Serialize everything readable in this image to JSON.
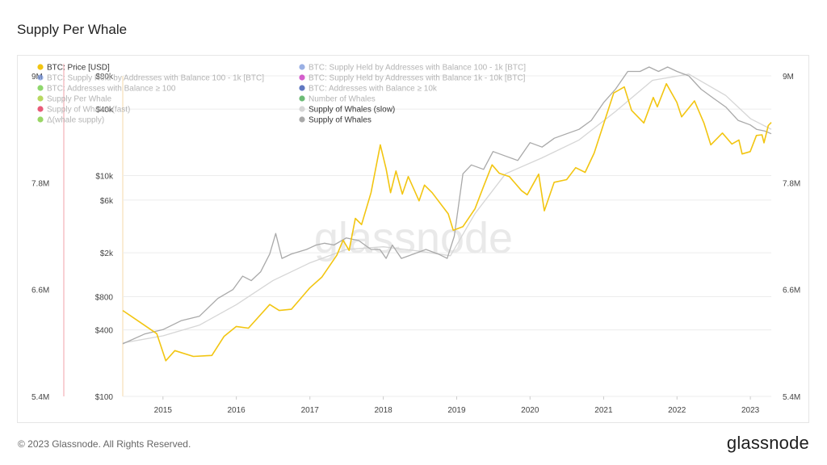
{
  "page": {
    "title": "Supply Per Whale",
    "footer": "© 2023 Glassnode. All Rights Reserved.",
    "brand": "glassnode",
    "watermark": "glassnode"
  },
  "chart_data": {
    "type": "line",
    "title": "Supply Per Whale",
    "legend_placement": "top-left",
    "grid": true,
    "x_ticks": [
      "2015",
      "2016",
      "2017",
      "2018",
      "2019",
      "2020",
      "2021",
      "2022",
      "2023"
    ],
    "x_range": [
      "2014-06-15",
      "2023-04-15"
    ],
    "y_left": {
      "scale": "log",
      "ticks": [
        "$100",
        "$400",
        "$800",
        "$2k",
        "$6k",
        "$10k",
        "$40k",
        "$80k"
      ],
      "tick_values": [
        100,
        400,
        800,
        2000,
        6000,
        10000,
        40000,
        80000
      ],
      "range": [
        100,
        80000
      ]
    },
    "y_right": {
      "ticks": [
        "5.4M",
        "6.6M",
        "7.8M",
        "9M"
      ],
      "tick_values": [
        5400000,
        6600000,
        7800000,
        9000000
      ],
      "range": [
        5400000,
        9000000
      ]
    },
    "outer_left_ticks": [
      "9M",
      "7.8M",
      "6.6M",
      "5.4M"
    ],
    "legend": [
      {
        "label": "BTC: Price [USD]",
        "color": "#f2c511",
        "active": true
      },
      {
        "label": "BTC: Supply Held by Addresses with Balance 100 - 1k [BTC]",
        "color": "#6f8fd8",
        "active": false
      },
      {
        "label": "BTC: Supply Held by Addresses with Balance 100 - 1k [BTC]",
        "color": "#6f8fd8",
        "active": false
      },
      {
        "label": "BTC: Supply Held by Addresses with Balance 1k - 10k [BTC]",
        "color": "#c31bb8",
        "active": false
      },
      {
        "label": "BTC: Addresses with Balance ≥ 100",
        "color": "#5fc62f",
        "active": false
      },
      {
        "label": "BTC: Addresses with Balance ≥ 10k",
        "color": "#1c3fa6",
        "active": false
      },
      {
        "label": "Supply Per Whale",
        "color": "#9ac81c",
        "active": false
      },
      {
        "label": "Number of Whales",
        "color": "#2e9e3c",
        "active": false
      },
      {
        "label": "Supply of Whales (fast)",
        "color": "#e0163f",
        "active": false
      },
      {
        "label": "Supply of Whales (slow)",
        "color": "#d6d6d6",
        "active": true
      },
      {
        "label": "Δ(whale supply)",
        "color": "#6fc425",
        "active": false
      },
      {
        "label": "Supply of Whales",
        "color": "#a9a9a9",
        "active": true
      }
    ],
    "series": [
      {
        "name": "BTC: Price [USD]",
        "color": "#f2c511",
        "axis": "left",
        "points": [
          [
            "2014-06-15",
            600
          ],
          [
            "2014-09-01",
            480
          ],
          [
            "2014-12-01",
            370
          ],
          [
            "2015-01-15",
            210
          ],
          [
            "2015-03-01",
            260
          ],
          [
            "2015-06-01",
            230
          ],
          [
            "2015-09-01",
            235
          ],
          [
            "2015-11-01",
            350
          ],
          [
            "2016-01-01",
            430
          ],
          [
            "2016-03-01",
            415
          ],
          [
            "2016-06-15",
            680
          ],
          [
            "2016-08-01",
            600
          ],
          [
            "2016-10-01",
            615
          ],
          [
            "2016-12-31",
            960
          ],
          [
            "2017-03-01",
            1200
          ],
          [
            "2017-05-15",
            1900
          ],
          [
            "2017-06-15",
            2600
          ],
          [
            "2017-07-15",
            2100
          ],
          [
            "2017-08-15",
            4100
          ],
          [
            "2017-09-15",
            3600
          ],
          [
            "2017-11-01",
            7000
          ],
          [
            "2017-12-17",
            19000
          ],
          [
            "2018-01-15",
            11500
          ],
          [
            "2018-02-06",
            7000
          ],
          [
            "2018-03-05",
            11000
          ],
          [
            "2018-04-06",
            6800
          ],
          [
            "2018-05-05",
            9800
          ],
          [
            "2018-06-28",
            5900
          ],
          [
            "2018-07-25",
            8200
          ],
          [
            "2018-09-01",
            7000
          ],
          [
            "2018-11-20",
            4500
          ],
          [
            "2018-12-15",
            3200
          ],
          [
            "2019-02-01",
            3450
          ],
          [
            "2019-04-02",
            5000
          ],
          [
            "2019-05-15",
            8000
          ],
          [
            "2019-06-26",
            12500
          ],
          [
            "2019-08-01",
            10500
          ],
          [
            "2019-09-20",
            9800
          ],
          [
            "2019-11-20",
            7300
          ],
          [
            "2019-12-18",
            6700
          ],
          [
            "2020-02-13",
            10300
          ],
          [
            "2020-03-12",
            4800
          ],
          [
            "2020-04-30",
            8700
          ],
          [
            "2020-07-01",
            9200
          ],
          [
            "2020-08-15",
            11800
          ],
          [
            "2020-10-01",
            10700
          ],
          [
            "2020-11-15",
            16000
          ],
          [
            "2020-12-31",
            29000
          ],
          [
            "2021-02-20",
            56000
          ],
          [
            "2021-04-14",
            63500
          ],
          [
            "2021-05-20",
            39000
          ],
          [
            "2021-07-20",
            30000
          ],
          [
            "2021-09-05",
            51000
          ],
          [
            "2021-09-25",
            42000
          ],
          [
            "2021-11-09",
            68000
          ],
          [
            "2021-12-31",
            46200
          ],
          [
            "2022-01-24",
            34000
          ],
          [
            "2022-03-29",
            47500
          ],
          [
            "2022-05-15",
            30000
          ],
          [
            "2022-06-18",
            19000
          ],
          [
            "2022-08-15",
            24300
          ],
          [
            "2022-10-01",
            19300
          ],
          [
            "2022-11-05",
            21000
          ],
          [
            "2022-11-21",
            15700
          ],
          [
            "2022-12-31",
            16500
          ],
          [
            "2023-01-31",
            23100
          ],
          [
            "2023-02-28",
            23400
          ],
          [
            "2023-03-10",
            19800
          ],
          [
            "2023-03-31",
            28400
          ],
          [
            "2023-04-15",
            30300
          ]
        ]
      },
      {
        "name": "Supply of Whales",
        "color": "#a9a9a9",
        "axis": "right",
        "points": [
          [
            "2014-06-15",
            5990000
          ],
          [
            "2014-10-01",
            6100000
          ],
          [
            "2015-01-01",
            6150000
          ],
          [
            "2015-04-01",
            6250000
          ],
          [
            "2015-07-01",
            6300000
          ],
          [
            "2015-10-01",
            6500000
          ],
          [
            "2015-12-15",
            6600000
          ],
          [
            "2016-02-01",
            6750000
          ],
          [
            "2016-03-15",
            6700000
          ],
          [
            "2016-05-01",
            6800000
          ],
          [
            "2016-06-15",
            7000000
          ],
          [
            "2016-07-15",
            7230000
          ],
          [
            "2016-08-15",
            6950000
          ],
          [
            "2016-10-01",
            7000000
          ],
          [
            "2016-12-15",
            7050000
          ],
          [
            "2017-02-01",
            7100000
          ],
          [
            "2017-03-15",
            7120000
          ],
          [
            "2017-05-01",
            7100000
          ],
          [
            "2017-07-01",
            7180000
          ],
          [
            "2017-09-01",
            7150000
          ],
          [
            "2017-11-01",
            7050000
          ],
          [
            "2017-12-15",
            7050000
          ],
          [
            "2018-01-15",
            6950000
          ],
          [
            "2018-02-15",
            7100000
          ],
          [
            "2018-04-01",
            6950000
          ],
          [
            "2018-06-01",
            7000000
          ],
          [
            "2018-08-01",
            7050000
          ],
          [
            "2018-10-01",
            7000000
          ],
          [
            "2018-11-15",
            6950000
          ],
          [
            "2018-12-20",
            7200000
          ],
          [
            "2019-02-01",
            7900000
          ],
          [
            "2019-03-15",
            8000000
          ],
          [
            "2019-05-15",
            7950000
          ],
          [
            "2019-07-01",
            8150000
          ],
          [
            "2019-09-01",
            8100000
          ],
          [
            "2019-11-01",
            8050000
          ],
          [
            "2020-01-01",
            8250000
          ],
          [
            "2020-03-01",
            8200000
          ],
          [
            "2020-05-01",
            8300000
          ],
          [
            "2020-07-01",
            8350000
          ],
          [
            "2020-09-01",
            8400000
          ],
          [
            "2020-11-01",
            8500000
          ],
          [
            "2021-01-01",
            8700000
          ],
          [
            "2021-03-01",
            8850000
          ],
          [
            "2021-05-01",
            9050000
          ],
          [
            "2021-07-01",
            9050000
          ],
          [
            "2021-08-15",
            9100000
          ],
          [
            "2021-10-01",
            9050000
          ],
          [
            "2021-11-15",
            9100000
          ],
          [
            "2022-01-01",
            9050000
          ],
          [
            "2022-03-01",
            9000000
          ],
          [
            "2022-05-01",
            8850000
          ],
          [
            "2022-07-01",
            8750000
          ],
          [
            "2022-09-01",
            8650000
          ],
          [
            "2022-11-01",
            8500000
          ],
          [
            "2022-12-31",
            8450000
          ],
          [
            "2023-02-01",
            8400000
          ],
          [
            "2023-03-15",
            8380000
          ],
          [
            "2023-04-15",
            8350000
          ]
        ]
      },
      {
        "name": "Supply of Whales (slow)",
        "color": "#d6d6d6",
        "axis": "right",
        "points": [
          [
            "2014-06-15",
            6000000
          ],
          [
            "2015-01-01",
            6080000
          ],
          [
            "2015-07-01",
            6200000
          ],
          [
            "2016-01-01",
            6430000
          ],
          [
            "2016-07-01",
            6700000
          ],
          [
            "2017-01-01",
            6900000
          ],
          [
            "2017-07-01",
            7050000
          ],
          [
            "2018-01-01",
            7080000
          ],
          [
            "2018-07-01",
            7030000
          ],
          [
            "2018-12-01",
            6980000
          ],
          [
            "2019-04-01",
            7450000
          ],
          [
            "2019-09-01",
            7900000
          ],
          [
            "2020-03-01",
            8080000
          ],
          [
            "2020-09-01",
            8280000
          ],
          [
            "2021-03-01",
            8600000
          ],
          [
            "2021-09-01",
            8950000
          ],
          [
            "2022-03-01",
            9020000
          ],
          [
            "2022-09-01",
            8780000
          ],
          [
            "2023-01-01",
            8520000
          ],
          [
            "2023-04-15",
            8400000
          ]
        ]
      }
    ]
  }
}
